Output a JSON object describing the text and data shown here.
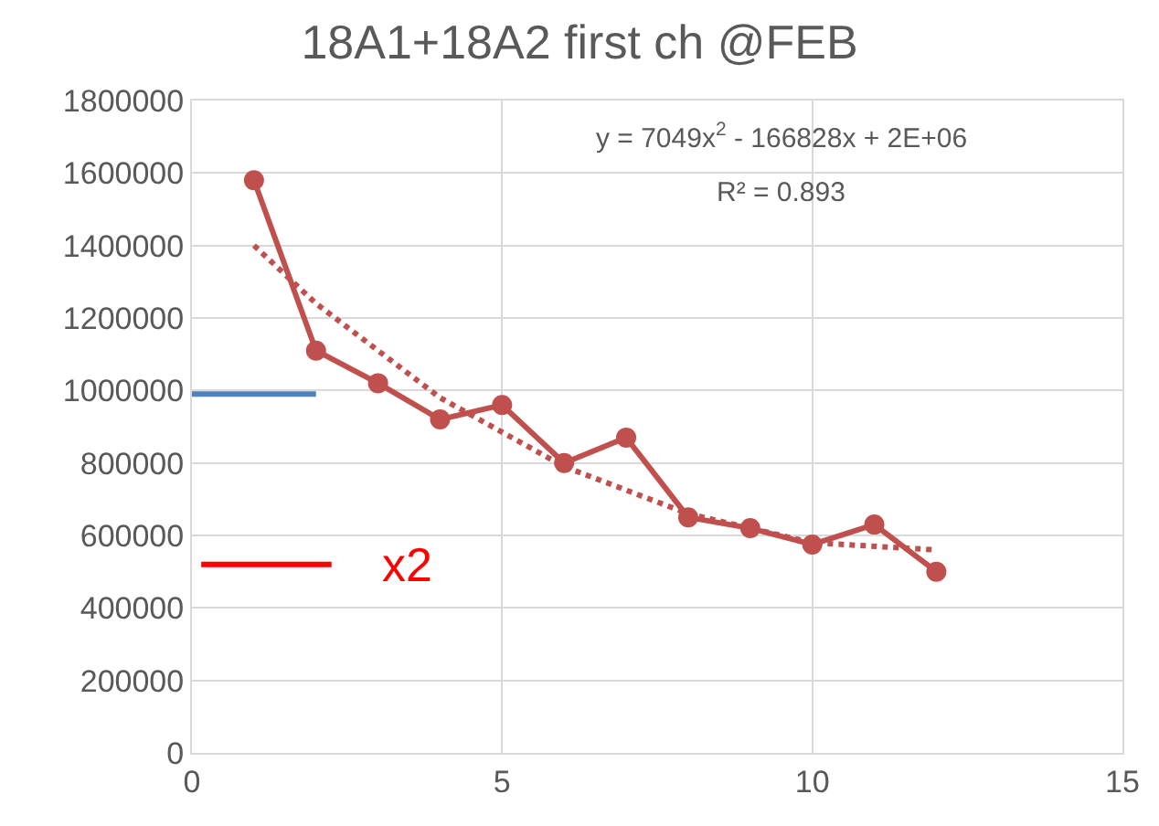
{
  "chart_data": {
    "type": "line",
    "title": "18A1+18A2 first ch @FEB",
    "x": [
      1,
      2,
      3,
      4,
      5,
      6,
      7,
      8,
      9,
      10,
      11,
      12
    ],
    "series": [
      {
        "color": "#c0504d",
        "values": [
          1580000,
          1110000,
          1020000,
          920000,
          960000,
          800000,
          870000,
          650000,
          620000,
          575000,
          630000,
          500000
        ]
      },
      {
        "type": "line",
        "color": "#c0504d",
        "line_style": "dotted",
        "marker": "none",
        "x": [
          1,
          2,
          4,
          6,
          8,
          10,
          12
        ],
        "values": [
          1400000,
          1240000,
          980000,
          790000,
          660000,
          580000,
          560000
        ]
      },
      {
        "type": "line",
        "color": "#4f81bd",
        "marker": "none",
        "x": [
          0,
          2
        ],
        "values": [
          990000,
          990000
        ]
      },
      {
        "type": "line",
        "color": "#ff0000",
        "marker": "none",
        "x": [
          0.15,
          2.25
        ],
        "values": [
          520000,
          520000
        ]
      }
    ],
    "annotations": [
      "y = 7049x$^{2}$ - 166828x + 2E+06",
      "R² = 0.893",
      "x2"
    ],
    "xlim": [
      0,
      15
    ],
    "xticks": [
      0,
      5,
      10,
      15
    ],
    "ylim": [
      0,
      1800000
    ],
    "yticks": [
      0,
      200000,
      400000,
      600000,
      800000,
      1000000,
      1200000,
      1400000,
      1600000,
      1800000
    ],
    "grid": true,
    "marker": "circle",
    "line_style": "solid"
  }
}
